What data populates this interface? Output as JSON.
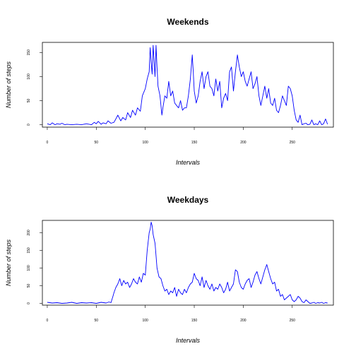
{
  "colors": {
    "line": "#0000ff",
    "axis": "#000000",
    "background": "#ffffff"
  },
  "chart_data": [
    {
      "type": "line",
      "title": "Weekends",
      "xlabel": "Intervals",
      "ylabel": "Number of steps",
      "xlim": [
        -5,
        292
      ],
      "ylim": [
        -5,
        171
      ],
      "xticks": [
        0,
        50,
        100,
        150,
        200,
        250
      ],
      "yticks": [
        0,
        50,
        100,
        150
      ],
      "grid": false,
      "series": [
        {
          "x": [
            0,
            3,
            5,
            8,
            10,
            13,
            15,
            18,
            20,
            25,
            30,
            35,
            40,
            45,
            48,
            50,
            52,
            55,
            57,
            60,
            62,
            65,
            68,
            70,
            72,
            75,
            77,
            80,
            82,
            85,
            87,
            90,
            92,
            95,
            97,
            100,
            102,
            104,
            105,
            106,
            107,
            108,
            110,
            111,
            112,
            113,
            115,
            117,
            118,
            120,
            122,
            124,
            126,
            128,
            130,
            132,
            134,
            136,
            138,
            140,
            142,
            144,
            146,
            148,
            149,
            150,
            152,
            154,
            156,
            158,
            160,
            162,
            164,
            166,
            168,
            170,
            172,
            174,
            176,
            178,
            180,
            182,
            184,
            186,
            188,
            190,
            192,
            194,
            196,
            198,
            200,
            202,
            204,
            206,
            208,
            210,
            212,
            214,
            216,
            218,
            220,
            222,
            224,
            226,
            228,
            230,
            232,
            234,
            236,
            238,
            240,
            242,
            244,
            246,
            248,
            250,
            252,
            254,
            256,
            258,
            260,
            262,
            264,
            266,
            268,
            270,
            272,
            274,
            276,
            278,
            280,
            282,
            284,
            286
          ],
          "y": [
            2,
            0,
            4,
            0,
            2,
            1,
            3,
            0,
            1,
            0,
            1,
            0,
            2,
            0,
            5,
            2,
            7,
            1,
            4,
            2,
            8,
            3,
            5,
            12,
            20,
            8,
            15,
            10,
            25,
            15,
            30,
            20,
            35,
            28,
            60,
            75,
            95,
            110,
            160,
            130,
            105,
            165,
            100,
            165,
            120,
            80,
            60,
            20,
            35,
            60,
            55,
            90,
            60,
            70,
            45,
            40,
            35,
            50,
            30,
            35,
            35,
            60,
            95,
            145,
            110,
            70,
            45,
            60,
            90,
            110,
            75,
            100,
            110,
            80,
            75,
            60,
            95,
            70,
            90,
            35,
            55,
            65,
            50,
            110,
            120,
            70,
            110,
            145,
            120,
            100,
            110,
            90,
            80,
            95,
            110,
            75,
            85,
            100,
            60,
            40,
            60,
            80,
            55,
            75,
            45,
            40,
            55,
            30,
            25,
            40,
            60,
            50,
            40,
            80,
            75,
            60,
            30,
            10,
            5,
            20,
            0,
            2,
            3,
            0,
            1,
            10,
            0,
            2,
            0,
            8,
            0,
            2,
            12,
            1
          ]
        }
      ]
    },
    {
      "type": "line",
      "title": "Weekdays",
      "xlabel": "Intervals",
      "ylabel": "Number of steps",
      "xlim": [
        -5,
        292
      ],
      "ylim": [
        -5,
        235
      ],
      "xticks": [
        0,
        50,
        100,
        150,
        200,
        250
      ],
      "yticks": [
        0,
        50,
        100,
        150,
        200
      ],
      "grid": false,
      "series": [
        {
          "x": [
            0,
            5,
            10,
            15,
            20,
            25,
            30,
            35,
            40,
            45,
            50,
            55,
            60,
            63,
            65,
            67,
            68,
            70,
            72,
            74,
            76,
            78,
            80,
            82,
            84,
            86,
            88,
            90,
            92,
            94,
            96,
            98,
            100,
            102,
            104,
            105,
            106,
            107,
            108,
            110,
            112,
            114,
            116,
            118,
            120,
            122,
            124,
            126,
            128,
            130,
            132,
            134,
            136,
            138,
            140,
            142,
            144,
            146,
            148,
            150,
            152,
            154,
            156,
            158,
            160,
            162,
            164,
            166,
            168,
            170,
            172,
            174,
            176,
            178,
            180,
            182,
            184,
            186,
            188,
            190,
            192,
            194,
            196,
            198,
            200,
            202,
            204,
            206,
            208,
            210,
            212,
            214,
            216,
            218,
            220,
            222,
            224,
            226,
            228,
            230,
            232,
            234,
            236,
            238,
            240,
            242,
            244,
            246,
            248,
            250,
            252,
            254,
            256,
            258,
            260,
            262,
            264,
            266,
            268,
            270,
            272,
            274,
            276,
            278,
            280,
            282,
            284,
            286
          ],
          "y": [
            3,
            1,
            2,
            0,
            1,
            3,
            0,
            2,
            1,
            2,
            0,
            3,
            1,
            4,
            2,
            20,
            30,
            45,
            55,
            70,
            50,
            65,
            55,
            60,
            45,
            55,
            70,
            60,
            55,
            75,
            60,
            85,
            80,
            150,
            200,
            210,
            230,
            220,
            195,
            170,
            100,
            75,
            70,
            50,
            35,
            40,
            25,
            35,
            30,
            45,
            20,
            40,
            30,
            25,
            40,
            30,
            45,
            55,
            60,
            85,
            70,
            65,
            50,
            75,
            45,
            65,
            50,
            40,
            55,
            35,
            45,
            40,
            55,
            45,
            30,
            40,
            60,
            35,
            45,
            55,
            95,
            90,
            60,
            45,
            40,
            55,
            65,
            70,
            45,
            60,
            80,
            90,
            70,
            55,
            75,
            95,
            110,
            90,
            70,
            55,
            60,
            35,
            40,
            20,
            25,
            10,
            15,
            20,
            25,
            10,
            5,
            10,
            20,
            15,
            5,
            2,
            10,
            5,
            0,
            1,
            3,
            0,
            2,
            1,
            3,
            0,
            2,
            1
          ]
        }
      ]
    }
  ]
}
